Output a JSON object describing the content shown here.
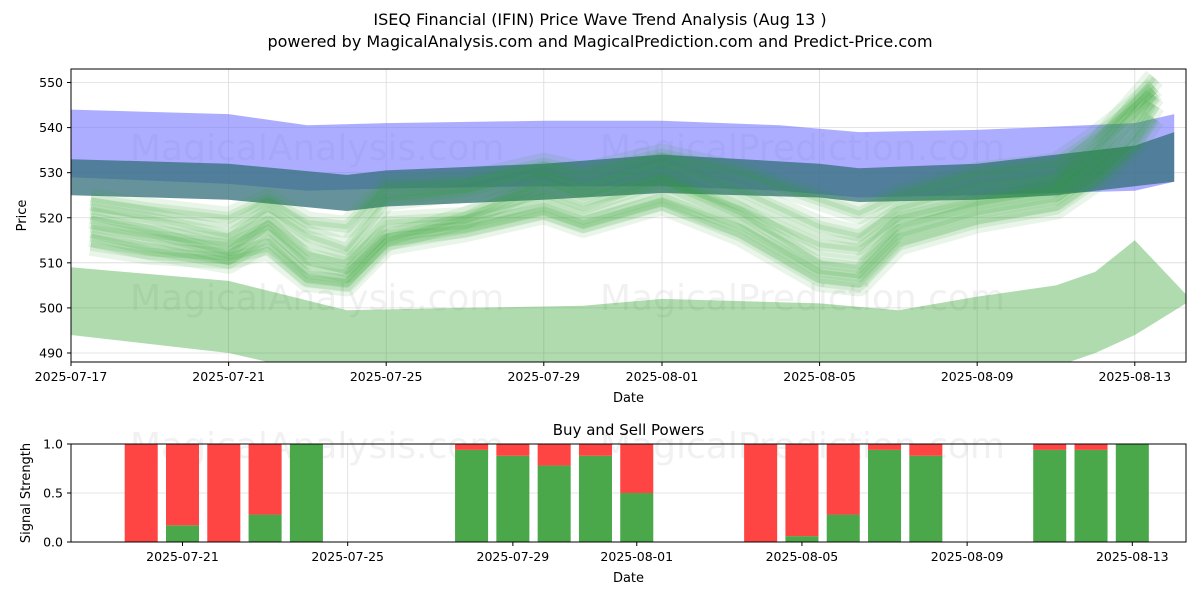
{
  "title_line1": "ISEQ Financial (IFIN) Price Wave Trend Analysis (Aug 13 )",
  "title_line2": "powered by MagicalAnalysis.com and MagicalPrediction.com and Predict-Price.com",
  "watermarks": [
    "MagicalAnalysis.com",
    "MagicalPrediction.com"
  ],
  "colors": {
    "blue_band": "#7777ff",
    "green": "#2ca02c",
    "dark_band": "#336f7a",
    "buy": "#4aa84a",
    "sell": "#ff4444"
  },
  "chart_data": [
    {
      "type": "area",
      "title": "",
      "xlabel": "Date",
      "ylabel": "Price",
      "ylim": [
        488,
        553
      ],
      "xlim": [
        "2025-07-17",
        "2025-08-14.3"
      ],
      "x_ticks": [
        "2025-07-17",
        "2025-07-21",
        "2025-07-25",
        "2025-07-29",
        "2025-08-01",
        "2025-08-05",
        "2025-08-09",
        "2025-08-13"
      ],
      "y_ticks": [
        490,
        500,
        510,
        520,
        530,
        540,
        550
      ],
      "grid": true,
      "series": [
        {
          "name": "upper-band",
          "style": "blue-band",
          "x": [
            "2025-07-17",
            "2025-07-21",
            "2025-07-23",
            "2025-07-25",
            "2025-07-29",
            "2025-08-01",
            "2025-08-04",
            "2025-08-06",
            "2025-08-09",
            "2025-08-13",
            "2025-08-14"
          ],
          "upper": [
            544,
            543,
            540.5,
            541,
            541.5,
            541.5,
            540.5,
            539,
            539.5,
            541,
            543
          ],
          "lower": [
            529,
            527.5,
            526,
            526.5,
            527,
            527,
            526,
            524.5,
            525,
            526,
            528
          ]
        },
        {
          "name": "mid-band",
          "style": "dark-band",
          "x": [
            "2025-07-17",
            "2025-07-21",
            "2025-07-24",
            "2025-07-25",
            "2025-07-29",
            "2025-08-01",
            "2025-08-05",
            "2025-08-06",
            "2025-08-09",
            "2025-08-11",
            "2025-08-13",
            "2025-08-14"
          ],
          "upper": [
            533,
            532,
            529.5,
            530.5,
            532,
            534,
            532,
            531,
            532,
            534,
            536,
            539
          ],
          "lower": [
            525,
            524,
            521.5,
            522.5,
            524,
            525.5,
            524.5,
            523.5,
            524,
            525,
            527,
            528
          ]
        },
        {
          "name": "lower-band",
          "style": "green-band",
          "x": [
            "2025-07-17",
            "2025-07-21",
            "2025-07-24",
            "2025-07-27",
            "2025-07-30",
            "2025-08-01",
            "2025-08-05",
            "2025-08-07",
            "2025-08-09",
            "2025-08-11",
            "2025-08-12",
            "2025-08-13",
            "2025-08-14.3"
          ],
          "upper": [
            509,
            506,
            499.5,
            500,
            500.5,
            502,
            501,
            499.5,
            502.5,
            505,
            508,
            515,
            503
          ],
          "lower": [
            494,
            490,
            484,
            484,
            484,
            485,
            484,
            483,
            484,
            487,
            490,
            494,
            501
          ]
        },
        {
          "name": "wave-1",
          "x": [
            "2025-07-17.5",
            "2025-07-19",
            "2025-07-21",
            "2025-07-22",
            "2025-07-23",
            "2025-07-24",
            "2025-07-25",
            "2025-07-27",
            "2025-07-29",
            "2025-07-30",
            "2025-08-01",
            "2025-08-03",
            "2025-08-05",
            "2025-08-06",
            "2025-08-07",
            "2025-08-09",
            "2025-08-11",
            "2025-08-12",
            "2025-08-13",
            "2025-08-13.5"
          ],
          "values": [
            520,
            517,
            512,
            519,
            512,
            510,
            519,
            520,
            525,
            522,
            528,
            522,
            514,
            513,
            520,
            524,
            527,
            534,
            544,
            548
          ]
        },
        {
          "name": "wave-2",
          "x": [
            "2025-07-17.5",
            "2025-07-19",
            "2025-07-21",
            "2025-07-22",
            "2025-07-23",
            "2025-07-24",
            "2025-07-25",
            "2025-07-27",
            "2025-07-29",
            "2025-07-30",
            "2025-08-01",
            "2025-08-03",
            "2025-08-05",
            "2025-08-06",
            "2025-08-07",
            "2025-08-09",
            "2025-08-11",
            "2025-08-12",
            "2025-08-13",
            "2025-08-13.5"
          ],
          "values": [
            522,
            520,
            516,
            522,
            516,
            513,
            524,
            526,
            530,
            527,
            532,
            526,
            518,
            516,
            522,
            527,
            529,
            536,
            546,
            551
          ]
        },
        {
          "name": "wave-3",
          "x": [
            "2025-07-17.5",
            "2025-07-19",
            "2025-07-21",
            "2025-07-22",
            "2025-07-23",
            "2025-07-24",
            "2025-07-25",
            "2025-07-27",
            "2025-07-29",
            "2025-07-30",
            "2025-08-01",
            "2025-08-03",
            "2025-08-05",
            "2025-08-06",
            "2025-08-07",
            "2025-08-09",
            "2025-08-11",
            "2025-08-12",
            "2025-08-13",
            "2025-08-13.5"
          ],
          "values": [
            518,
            516,
            514,
            518,
            510,
            508,
            516,
            518,
            522,
            519,
            524,
            518,
            508,
            507,
            516,
            521,
            524,
            530,
            538,
            545
          ]
        },
        {
          "name": "wave-4",
          "x": [
            "2025-07-17.5",
            "2025-07-19",
            "2025-07-21",
            "2025-07-22",
            "2025-07-23",
            "2025-07-24",
            "2025-07-25",
            "2025-07-27",
            "2025-07-29",
            "2025-07-30",
            "2025-08-01",
            "2025-08-03",
            "2025-08-05",
            "2025-08-06",
            "2025-08-07",
            "2025-08-09",
            "2025-08-11",
            "2025-08-12",
            "2025-08-13",
            "2025-08-13.5"
          ],
          "values": [
            516,
            513,
            510,
            515,
            507,
            506,
            515,
            520,
            528,
            525,
            529,
            521,
            510,
            509,
            518,
            523,
            526,
            532,
            541,
            547
          ]
        },
        {
          "name": "wave-5",
          "x": [
            "2025-07-17.5",
            "2025-07-19",
            "2025-07-21",
            "2025-07-22",
            "2025-07-23",
            "2025-07-24",
            "2025-07-25",
            "2025-07-27",
            "2025-07-29",
            "2025-07-30",
            "2025-08-01",
            "2025-08-03",
            "2025-08-05",
            "2025-08-06",
            "2025-08-07",
            "2025-08-09",
            "2025-08-11",
            "2025-08-12",
            "2025-08-13",
            "2025-08-13.5"
          ],
          "values": [
            524,
            522,
            520,
            524,
            519,
            518,
            527,
            528,
            532,
            530,
            534,
            530,
            524,
            521,
            525,
            530,
            532,
            538,
            545,
            549
          ]
        },
        {
          "name": "wave-6",
          "x": [
            "2025-07-17.5",
            "2025-07-19",
            "2025-07-21",
            "2025-07-22",
            "2025-07-23",
            "2025-07-24",
            "2025-07-25",
            "2025-07-27",
            "2025-07-29",
            "2025-07-30",
            "2025-08-01",
            "2025-08-03",
            "2025-08-05",
            "2025-08-06",
            "2025-08-07",
            "2025-08-09",
            "2025-08-11",
            "2025-08-12",
            "2025-08-13",
            "2025-08-13.5"
          ],
          "values": [
            514,
            512,
            511,
            513,
            506,
            505,
            514,
            517,
            521,
            518,
            523,
            516,
            506,
            505,
            514,
            519,
            522,
            528,
            536,
            542
          ]
        }
      ]
    },
    {
      "type": "bar",
      "title": "Buy and Sell Powers",
      "xlabel": "Date",
      "ylabel": "Signal Strength",
      "ylim": [
        0,
        1
      ],
      "xlim": [
        "2025-07-18.3",
        "2025-08-14.3"
      ],
      "y_ticks": [
        "0.0",
        "0.5",
        "1.0"
      ],
      "x_ticks": [
        "2025-07-21",
        "2025-07-25",
        "2025-07-29",
        "2025-08-01",
        "2025-08-05",
        "2025-08-09",
        "2025-08-13"
      ],
      "grid": true,
      "categories": [
        "2025-07-20",
        "2025-07-21",
        "2025-07-22",
        "2025-07-23",
        "2025-07-24",
        "2025-07-28",
        "2025-07-29",
        "2025-07-30",
        "2025-07-31",
        "2025-08-01",
        "2025-08-04",
        "2025-08-05",
        "2025-08-06",
        "2025-08-07",
        "2025-08-08",
        "2025-08-11",
        "2025-08-12",
        "2025-08-13"
      ],
      "series": [
        {
          "name": "Buy",
          "values": [
            0.0,
            0.17,
            0.0,
            0.28,
            1.0,
            0.94,
            0.88,
            0.78,
            0.88,
            0.5,
            0.0,
            0.06,
            0.28,
            0.94,
            0.88,
            0.94,
            0.94,
            1.0
          ]
        },
        {
          "name": "Sell",
          "values": [
            1.0,
            0.83,
            1.0,
            0.72,
            0.0,
            0.06,
            0.12,
            0.22,
            0.12,
            0.5,
            1.0,
            0.94,
            0.72,
            0.06,
            0.12,
            0.06,
            0.06,
            0.0
          ]
        }
      ]
    }
  ]
}
